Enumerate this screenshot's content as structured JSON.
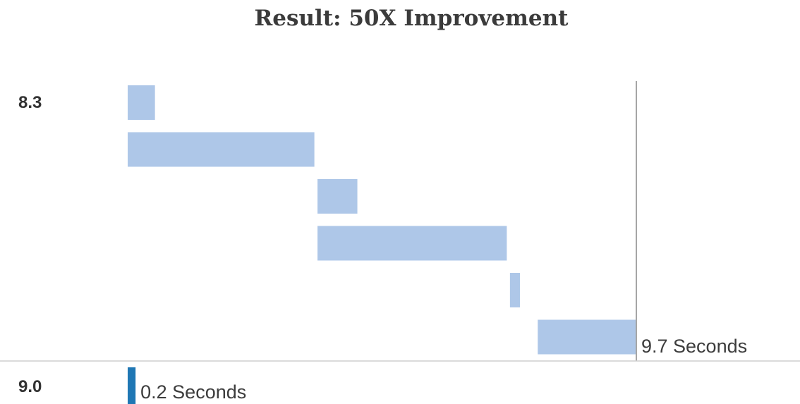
{
  "chart_data": {
    "type": "bar",
    "title": "Result: 50X Improvement",
    "xlim": [
      0,
      9.7
    ],
    "grid": false,
    "legend": "none",
    "colors": {
      "before": "#aec7e8",
      "after": "#1f77b4",
      "rule": "#a6a6a6",
      "separator": "#cfcfcf"
    },
    "rows": [
      {
        "label": "8.3",
        "segments": [
          {
            "start": 0.0,
            "end": 0.52
          },
          {
            "start": 0.0,
            "end": 3.56
          },
          {
            "start": 3.62,
            "end": 4.38
          },
          {
            "start": 3.62,
            "end": 7.23
          },
          {
            "start": 7.29,
            "end": 7.48
          },
          {
            "start": 7.82,
            "end": 9.7
          }
        ],
        "total": 9.7,
        "total_label": "9.7 Seconds"
      },
      {
        "label": "9.0",
        "segments": [
          {
            "start": 0.0,
            "end": 0.15
          }
        ],
        "total": 0.2,
        "total_label": "0.2 Seconds"
      }
    ]
  }
}
